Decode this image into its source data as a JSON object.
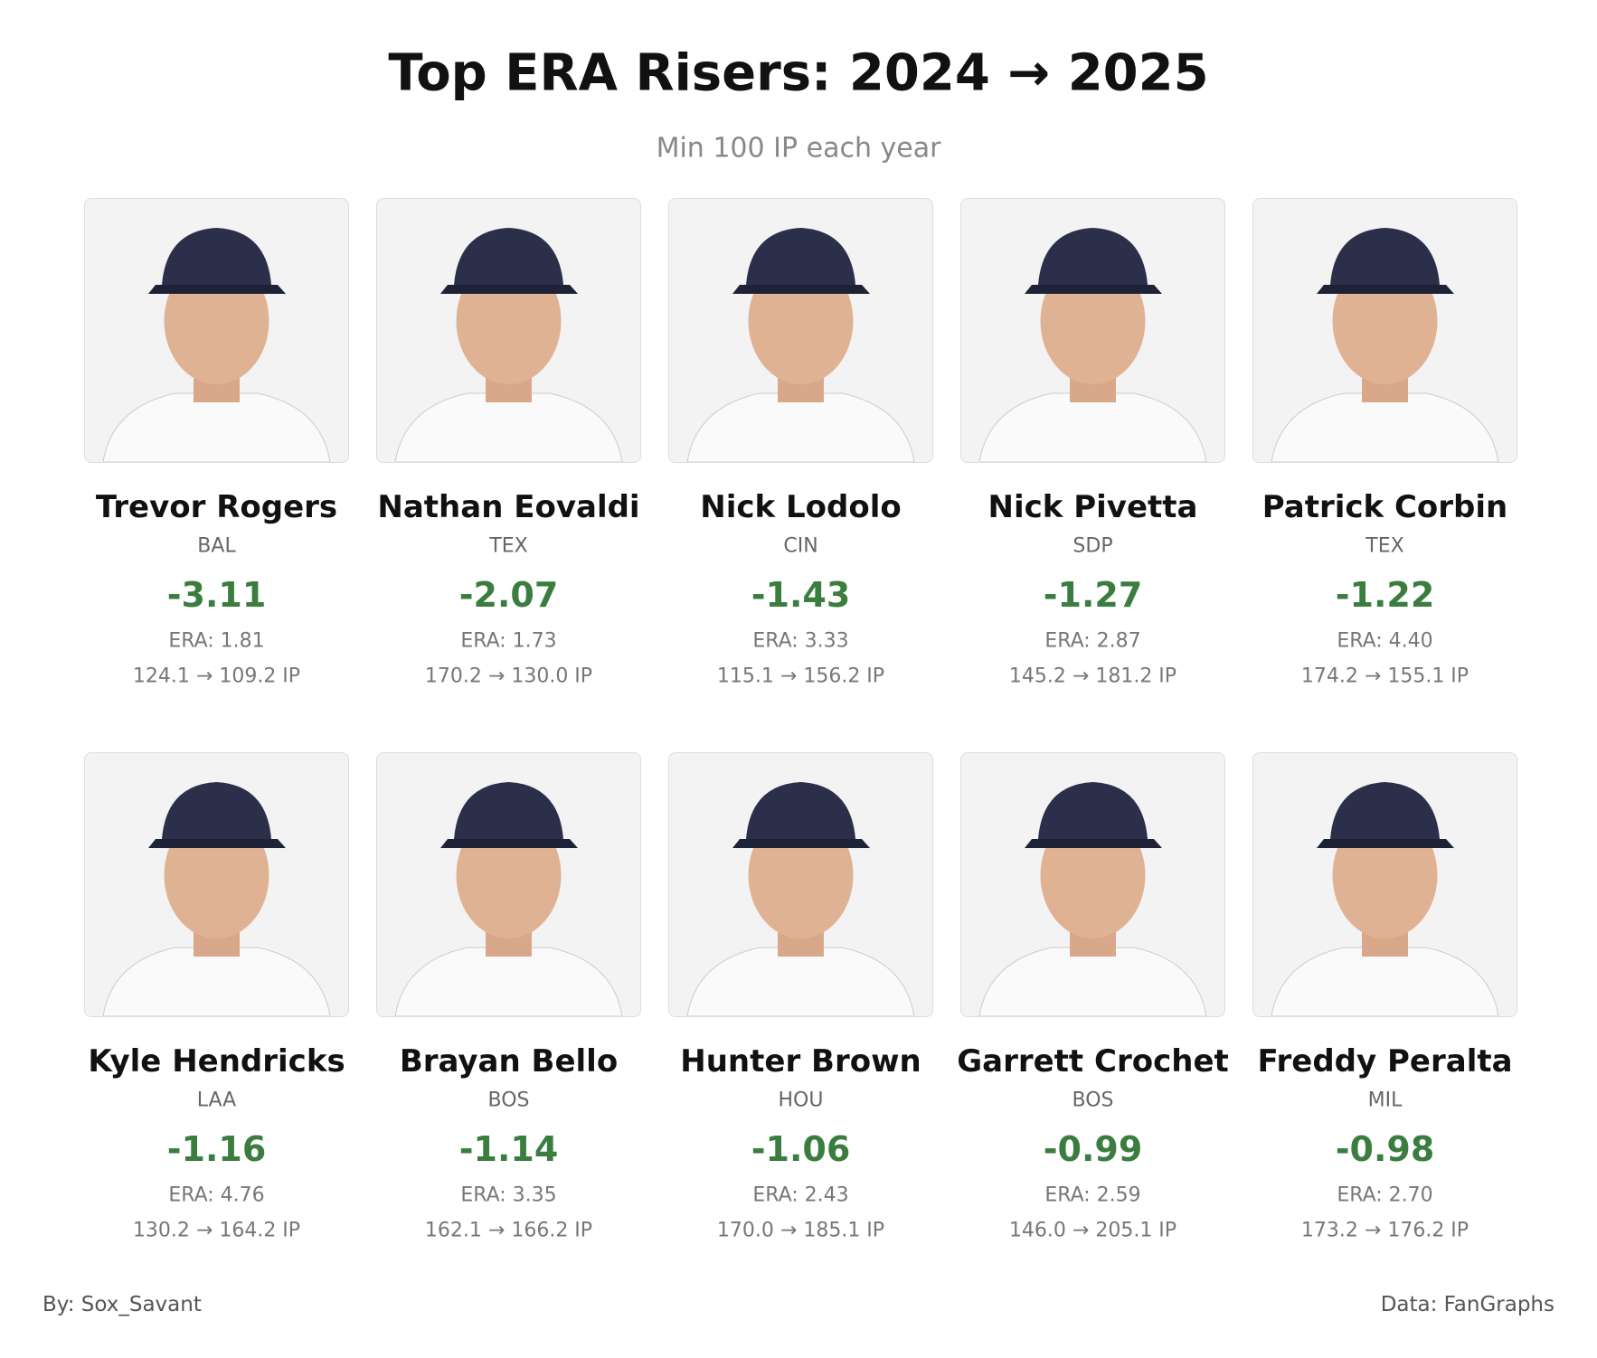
{
  "header": {
    "title": "Top ERA Risers: 2024 → 2025",
    "subtitle": "Min 100 IP each year"
  },
  "players": [
    {
      "name": "Trevor Rogers",
      "team": "BAL",
      "delta": "-3.11",
      "era": "ERA: 1.81",
      "ip": "124.1 → 109.2 IP"
    },
    {
      "name": "Nathan Eovaldi",
      "team": "TEX",
      "delta": "-2.07",
      "era": "ERA: 1.73",
      "ip": "170.2 → 130.0 IP"
    },
    {
      "name": "Nick Lodolo",
      "team": "CIN",
      "delta": "-1.43",
      "era": "ERA: 3.33",
      "ip": "115.1 → 156.2 IP"
    },
    {
      "name": "Nick Pivetta",
      "team": "SDP",
      "delta": "-1.27",
      "era": "ERA: 2.87",
      "ip": "145.2 → 181.2 IP"
    },
    {
      "name": "Patrick Corbin",
      "team": "TEX",
      "delta": "-1.22",
      "era": "ERA: 4.40",
      "ip": "174.2 → 155.1 IP"
    },
    {
      "name": "Kyle Hendricks",
      "team": "LAA",
      "delta": "-1.16",
      "era": "ERA: 4.76",
      "ip": "130.2 → 164.2 IP"
    },
    {
      "name": "Brayan Bello",
      "team": "BOS",
      "delta": "-1.14",
      "era": "ERA: 3.35",
      "ip": "162.1 → 166.2 IP"
    },
    {
      "name": "Hunter Brown",
      "team": "HOU",
      "delta": "-1.06",
      "era": "ERA: 2.43",
      "ip": "170.0 → 185.1 IP"
    },
    {
      "name": "Garrett Crochet",
      "team": "BOS",
      "delta": "-0.99",
      "era": "ERA: 2.59",
      "ip": "146.0 → 205.1 IP"
    },
    {
      "name": "Freddy Peralta",
      "team": "MIL",
      "delta": "-0.98",
      "era": "ERA: 2.70",
      "ip": "173.2 → 176.2 IP"
    }
  ],
  "footer": {
    "credit": "By: Sox_Savant",
    "source": "Data: FanGraphs"
  }
}
